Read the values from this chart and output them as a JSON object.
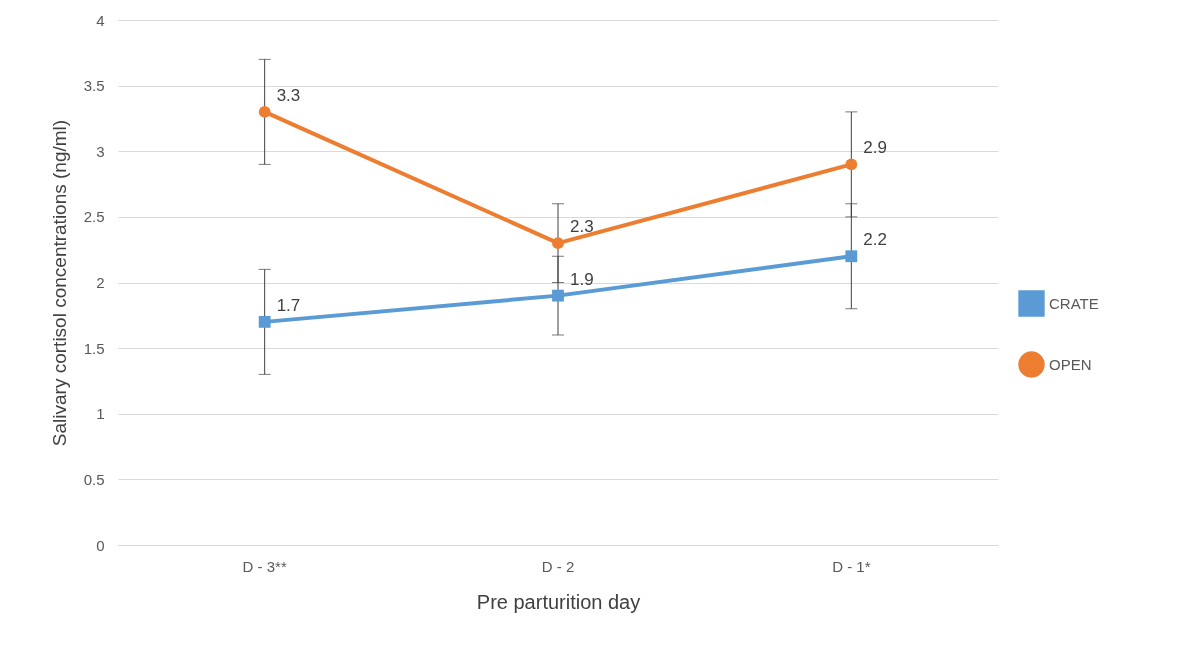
{
  "chart_data": {
    "type": "line",
    "xlabel": "Pre parturition day",
    "ylabel": "Salivary cortisol concentrations (ng/ml)",
    "categories": [
      "D - 3**",
      "D - 2",
      "D - 1*"
    ],
    "series": [
      {
        "name": "CRATE",
        "color": "#5b9bd5",
        "marker": "square",
        "values": [
          1.7,
          1.9,
          2.2
        ],
        "errors": [
          0.4,
          0.3,
          0.4
        ]
      },
      {
        "name": "OPEN",
        "color": "#ed7d31",
        "marker": "circle",
        "values": [
          3.3,
          2.3,
          2.9
        ],
        "errors": [
          0.4,
          0.3,
          0.4
        ]
      }
    ],
    "ylim": [
      0,
      4
    ],
    "yticks": [
      0,
      0.5,
      1,
      1.5,
      2,
      2.5,
      3,
      3.5,
      4
    ],
    "grid": "y",
    "legend": "right",
    "data_labels": true
  }
}
